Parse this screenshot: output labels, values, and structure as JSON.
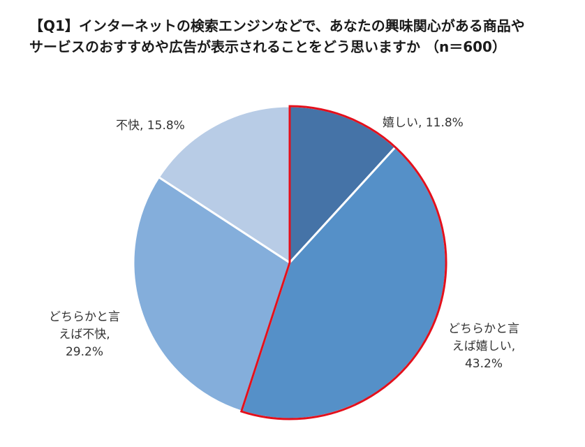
{
  "chart_data": {
    "type": "pie",
    "title_lines": [
      "【Q1】インターネットの検索エンジンなどで、あなたの興味関心がある商品や",
      "サービスのおすすめや広告が表示されることをどう思いますか （n＝600）"
    ],
    "slices": [
      {
        "label": "嬉しい",
        "value": 11.8,
        "value_text": "11.8%",
        "label_lines": [
          "嬉しい, 11.8%"
        ],
        "color": "#4573a7",
        "highlighted": true
      },
      {
        "label": "どちらかと言えば嬉しい",
        "value": 43.2,
        "value_text": "43.2%",
        "label_lines": [
          "どちらかと言",
          "えば嬉しい,",
          "43.2%"
        ],
        "color": "#5590c8",
        "highlighted": true
      },
      {
        "label": "どちらかと言えば不快",
        "value": 29.2,
        "value_text": "29.2%",
        "label_lines": [
          "どちらかと言",
          "えば不快,",
          "29.2%"
        ],
        "color": "#84aedb",
        "highlighted": false
      },
      {
        "label": "不快",
        "value": 15.8,
        "value_text": "15.8%",
        "label_lines": [
          "不快, 15.8%"
        ],
        "color": "#b8cce6",
        "highlighted": false
      }
    ],
    "highlight_color": "#e3101c",
    "start_angle_deg": 0,
    "direction": "clockwise"
  }
}
